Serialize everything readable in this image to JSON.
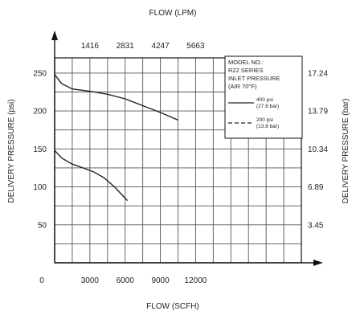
{
  "chart_data": {
    "type": "line",
    "top_axis": {
      "label": "FLOW (LPM)",
      "ticks": [
        {
          "value": 3000,
          "label": "1416"
        },
        {
          "value": 6000,
          "label": "2831"
        },
        {
          "value": 9000,
          "label": "4247"
        },
        {
          "value": 12000,
          "label": "5663"
        }
      ]
    },
    "x_axis": {
      "label": "FLOW (SCFH)",
      "range": [
        0,
        21000
      ],
      "ticks": [
        {
          "value": 0,
          "label": "0"
        },
        {
          "value": 3000,
          "label": "3000"
        },
        {
          "value": 6000,
          "label": "6000"
        },
        {
          "value": 9000,
          "label": "9000"
        },
        {
          "value": 12000,
          "label": "12000"
        }
      ]
    },
    "y_axis": {
      "label": "DELIVERY PRESSURE (psi)",
      "range": [
        0,
        270
      ],
      "ticks": [
        {
          "value": 50,
          "label": "50"
        },
        {
          "value": 100,
          "label": "100"
        },
        {
          "value": 150,
          "label": "150"
        },
        {
          "value": 200,
          "label": "200"
        },
        {
          "value": 250,
          "label": "250"
        }
      ]
    },
    "right_axis": {
      "label": "DELIVERY PRESSURE (bar)",
      "ticks": [
        {
          "value": 50,
          "label": "3.45"
        },
        {
          "value": 100,
          "label": "6.89"
        },
        {
          "value": 150,
          "label": "10.34"
        },
        {
          "value": 200,
          "label": "13.79"
        },
        {
          "value": 250,
          "label": "17.24"
        }
      ]
    },
    "grid": true,
    "legend": {
      "placement": "top-right",
      "title_lines": [
        "MODEL NO.:",
        "R22 SERIES",
        "INLET PRESSURE",
        "(AIR 70°F)"
      ],
      "entries": [
        {
          "line1": "400 psi",
          "line2": "(27.6 bar)",
          "style": "solid"
        },
        {
          "line1": "200 psi",
          "line2": "(13.8 bar)",
          "style": "dashed"
        }
      ]
    },
    "series": [
      {
        "style": "solid",
        "points": [
          [
            0,
            248
          ],
          [
            600,
            236
          ],
          [
            1500,
            229
          ],
          [
            3000,
            226
          ],
          [
            4500,
            222
          ],
          [
            6000,
            216
          ],
          [
            7500,
            207
          ],
          [
            9000,
            198
          ],
          [
            10500,
            188
          ]
        ]
      },
      {
        "style": "solid",
        "points": [
          [
            0,
            148
          ],
          [
            600,
            138
          ],
          [
            1500,
            130
          ],
          [
            2400,
            125
          ],
          [
            3300,
            120
          ],
          [
            4200,
            112
          ],
          [
            5100,
            100
          ],
          [
            5700,
            90
          ],
          [
            6200,
            82
          ]
        ]
      }
    ],
    "colors": {
      "line": "#222222",
      "grid": "#555555",
      "axis": "#111111"
    }
  }
}
